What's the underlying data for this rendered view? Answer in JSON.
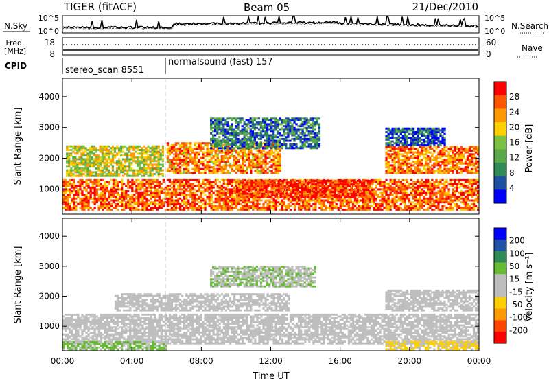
{
  "header": {
    "radar": "TIGER (fitACF)",
    "beam": "Beam 05",
    "date": "21/Dec/2010"
  },
  "aux_panels": {
    "nsky_label": "N.Sky",
    "nsearch_label": "N.Search",
    "freq_label_line1": "Freq.",
    "freq_label_line2": "[MHz]",
    "nave_label": "Nave",
    "cpid_label": "CPID",
    "left_ticks_noise": [
      "10^5",
      "10^0"
    ],
    "right_ticks_noise": [
      "10^5",
      "10^0"
    ],
    "left_ticks_freq": [
      "18",
      "8"
    ],
    "right_ticks_freq": [
      "60",
      "0"
    ],
    "cpid_segments": [
      {
        "label": "stereo_scan 8551",
        "start_hour": 0,
        "end_hour": 6
      },
      {
        "label": "normalsound (fast) 157",
        "start_hour": 6,
        "end_hour": 24
      }
    ]
  },
  "colors": {
    "power_scale": [
      "#0000ff",
      "#1f4fa0",
      "#2e8b57",
      "#5aa84a",
      "#7cc242",
      "#ffd000",
      "#ff9900",
      "#ff5500",
      "#ff0000"
    ],
    "velocity_scale": [
      "#0000ff",
      "#2050a8",
      "#2e8b57",
      "#66bb33",
      "#bebebe",
      "#bebebe",
      "#ffd000",
      "#ff9900",
      "#ff4400",
      "#ff0000"
    ],
    "ground_scatter": "#bebebe"
  },
  "chart_data": [
    {
      "type": "heatmap",
      "panel": "power",
      "ylabel": "Slant Range [km]",
      "xlabel": "",
      "ylim": [
        180,
        4600
      ],
      "yticks": [
        "1000",
        "2000",
        "3000",
        "4000"
      ],
      "ytick_values": [
        1000,
        2000,
        3000,
        4000
      ],
      "colorbar_label": "Power [dB]",
      "colorbar_ticks": [
        "4",
        "8",
        "12",
        "16",
        "20",
        "24",
        "28"
      ],
      "colorbar_range": [
        0,
        32
      ],
      "xlim_hours": [
        0,
        24
      ],
      "regions": [
        {
          "start": 0,
          "end": 24,
          "low": 300,
          "high": 1300,
          "value": 26
        },
        {
          "start": 0.2,
          "end": 5.8,
          "low": 1400,
          "high": 2400,
          "value": 18
        },
        {
          "start": 6,
          "end": 12.5,
          "low": 1500,
          "high": 2500,
          "value": 24
        },
        {
          "start": 10,
          "end": 17.8,
          "low": 700,
          "high": 1300,
          "value": 29
        },
        {
          "start": 8.5,
          "end": 14.8,
          "low": 2300,
          "high": 3300,
          "value": 8
        },
        {
          "start": 18.6,
          "end": 24,
          "low": 1500,
          "high": 2400,
          "value": 25
        },
        {
          "start": 18.6,
          "end": 22,
          "low": 2400,
          "high": 3000,
          "value": 6
        }
      ]
    },
    {
      "type": "heatmap",
      "panel": "velocity",
      "ylabel": "Slant Range [km]",
      "xlabel": "Time UT",
      "ylim": [
        180,
        4600
      ],
      "yticks": [
        "1000",
        "2000",
        "3000",
        "4000"
      ],
      "ytick_values": [
        1000,
        2000,
        3000,
        4000
      ],
      "xticks": [
        "00:00",
        "04:00",
        "08:00",
        "12:00",
        "16:00",
        "20:00",
        "00:00"
      ],
      "xtick_hours": [
        0,
        4,
        8,
        12,
        16,
        20,
        24
      ],
      "colorbar_label": "Velocity [m s⁻¹]",
      "colorbar_ticks": [
        "200",
        "100",
        "50",
        "15",
        "-15",
        "-50",
        "-100",
        "-200"
      ],
      "colorbar_range": [
        -250,
        250
      ],
      "xlim_hours": [
        0,
        24
      ],
      "regions": [
        {
          "start": 0,
          "end": 24,
          "low": 400,
          "high": 1400,
          "value": 0
        },
        {
          "start": 3,
          "end": 13,
          "low": 1500,
          "high": 2100,
          "value": 0
        },
        {
          "start": 18.6,
          "end": 24,
          "low": 1500,
          "high": 2200,
          "value": 0
        },
        {
          "start": 0,
          "end": 6,
          "low": 200,
          "high": 450,
          "value": 60
        },
        {
          "start": 18.6,
          "end": 24,
          "low": 200,
          "high": 500,
          "value": -60
        },
        {
          "start": 8.5,
          "end": 14.5,
          "low": 2300,
          "high": 3000,
          "value": 40
        }
      ]
    }
  ]
}
